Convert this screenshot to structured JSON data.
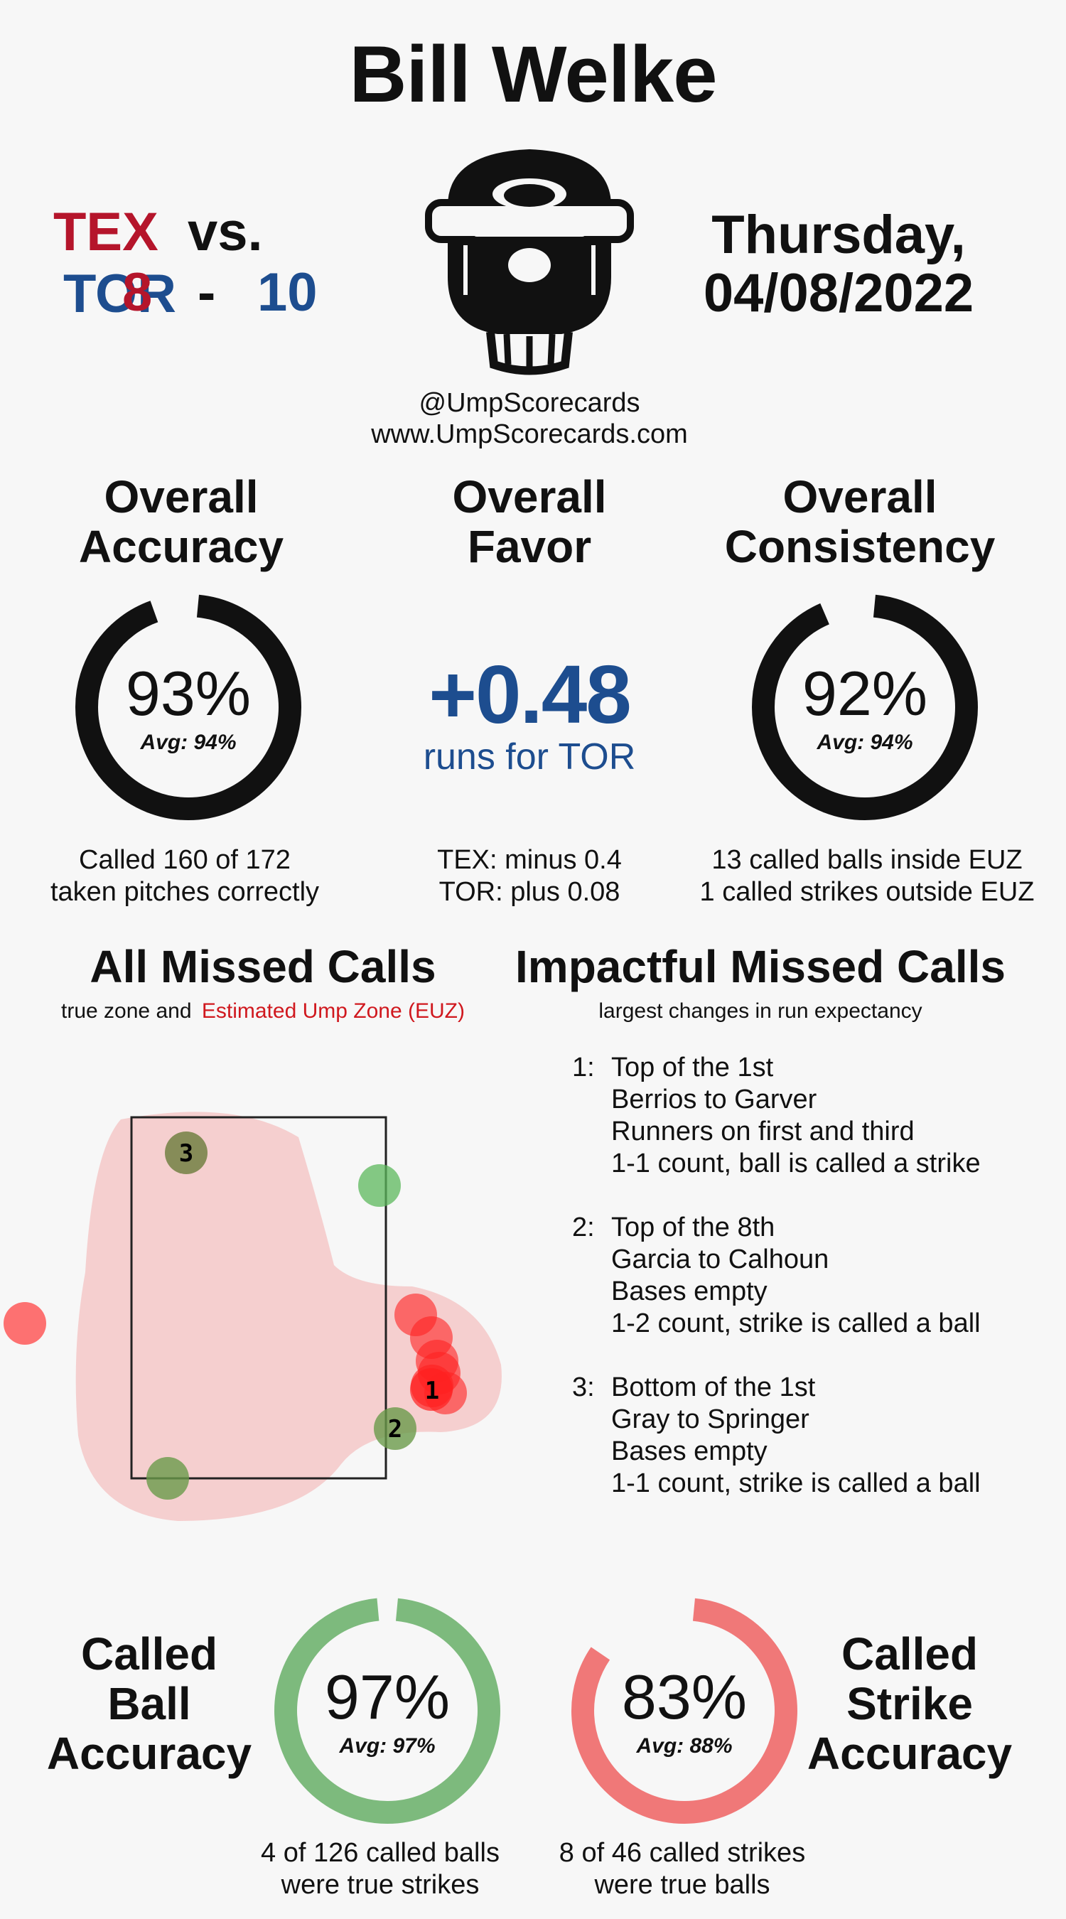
{
  "umpire": "Bill Welke",
  "game": {
    "away_team": "TEX",
    "vs": "vs.",
    "home_team": "TOR",
    "away_score": "8",
    "dash": "-",
    "home_score": "10",
    "date_line1": "Thursday,",
    "date_line2": "04/08/2022",
    "colors": {
      "away": "#b5152b",
      "home": "#1d4d8f"
    }
  },
  "branding": {
    "handle": "@UmpScorecards",
    "site": "www.UmpScorecards.com",
    "logo_icon": "umpire-mask-icon"
  },
  "accuracy": {
    "title_1": "Overall",
    "title_2": "Accuracy",
    "value": "93%",
    "fraction": 0.93,
    "avg": "Avg: 94%",
    "desc_1": "Called 160 of 172",
    "desc_2": "taken pitches correctly"
  },
  "favor": {
    "title_1": "Overall",
    "title_2": "Favor",
    "value": "+0.48",
    "label": "runs for TOR",
    "desc_1": "TEX: minus 0.4",
    "desc_2": "TOR: plus 0.08"
  },
  "consistency": {
    "title_1": "Overall",
    "title_2": "Consistency",
    "value": "92%",
    "fraction": 0.92,
    "avg": "Avg: 94%",
    "desc_1": "13 called balls inside EUZ",
    "desc_2": "1 called strikes outside EUZ"
  },
  "all_missed": {
    "title": "All Missed Calls",
    "sub_plain": "true zone and",
    "sub_colored": "Estimated Ump Zone (EUZ)",
    "sub_color": "#d0181e"
  },
  "impactful": {
    "title": "Impactful Missed Calls",
    "sub": "largest changes in run expectancy",
    "items": [
      {
        "num": "1:",
        "inning": "Top of the 1st",
        "matchup": "Berrios to Garver",
        "runners": "Runners on first and third",
        "count": "1-1 count, ball is called a strike"
      },
      {
        "num": "2:",
        "inning": "Top of the 8th",
        "matchup": "Garcia to Calhoun",
        "runners": "Bases empty",
        "count": "1-2 count, strike is called a ball"
      },
      {
        "num": "3:",
        "inning": "Bottom of the 1st",
        "matchup": "Gray to Springer",
        "runners": "Bases empty",
        "count": "1-1 count, strike is called a ball"
      }
    ]
  },
  "zone_labels": {
    "p1": "1",
    "p2": "2",
    "p3": "3"
  },
  "ball_accuracy": {
    "title_1": "Called",
    "title_2": "Ball",
    "title_3": "Accuracy",
    "value": "97%",
    "fraction": 0.97,
    "avg": "Avg: 97%",
    "desc_1": "4 of 126 called balls",
    "desc_2": "were true strikes",
    "color": "#7dba7d"
  },
  "strike_accuracy": {
    "title_1": "Called",
    "title_2": "Strike",
    "title_3": "Accuracy",
    "value": "83%",
    "fraction": 0.83,
    "avg": "Avg: 88%",
    "desc_1": "8 of 46 called strikes",
    "desc_2": "were true balls",
    "color": "#f07878"
  }
}
